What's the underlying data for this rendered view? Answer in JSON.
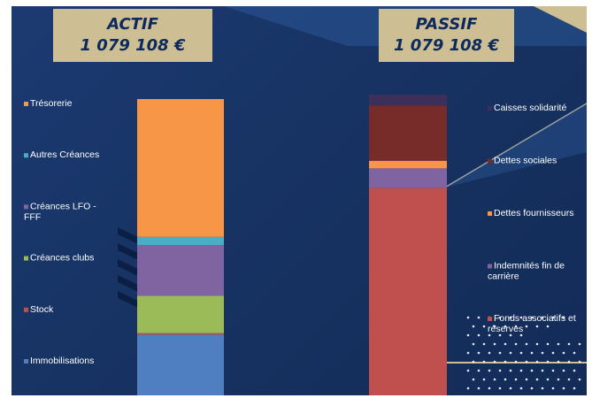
{
  "actif": {
    "title": "ACTIF",
    "total": "1 079 108 €"
  },
  "passif": {
    "title": "PASSIF",
    "total": "1 079 108 €"
  },
  "chart_data": {
    "type": "bar",
    "stacked": true,
    "charts": [
      {
        "name": "ACTIF",
        "total": "1 079 108 €",
        "segments": [
          {
            "label": "Immobilisations",
            "value": 20.5,
            "color": "#4f7fc1"
          },
          {
            "label": "Stock",
            "value": 0.5,
            "color": "#c0504d"
          },
          {
            "label": "Créances clubs",
            "value": 12.6,
            "color": "#9bbb59"
          },
          {
            "label": "Créances LFO - FFF",
            "value": 17.1,
            "color": "#8064a2"
          },
          {
            "label": "Autres Créances",
            "value": 2.8,
            "color": "#4bacc6"
          },
          {
            "label": "Trésorerie",
            "value": 46.5,
            "color": "#f79646"
          }
        ]
      },
      {
        "name": "PASSIF",
        "total": "1 079 108 €",
        "segments": [
          {
            "label": "Fonds associatifs et réserves",
            "value": 69.0,
            "color": "#c0504d"
          },
          {
            "label": "Indemnités fin de carrière",
            "value": 6.5,
            "color": "#8064a2"
          },
          {
            "label": "Dettes fournisseurs",
            "value": 2.5,
            "color": "#f79646"
          },
          {
            "label": "Dettes sociales",
            "value": 18.3,
            "color": "#772c2a"
          },
          {
            "label": "Caisses solidarité",
            "value": 3.7,
            "color": "#3c2f5a"
          }
        ]
      }
    ]
  }
}
